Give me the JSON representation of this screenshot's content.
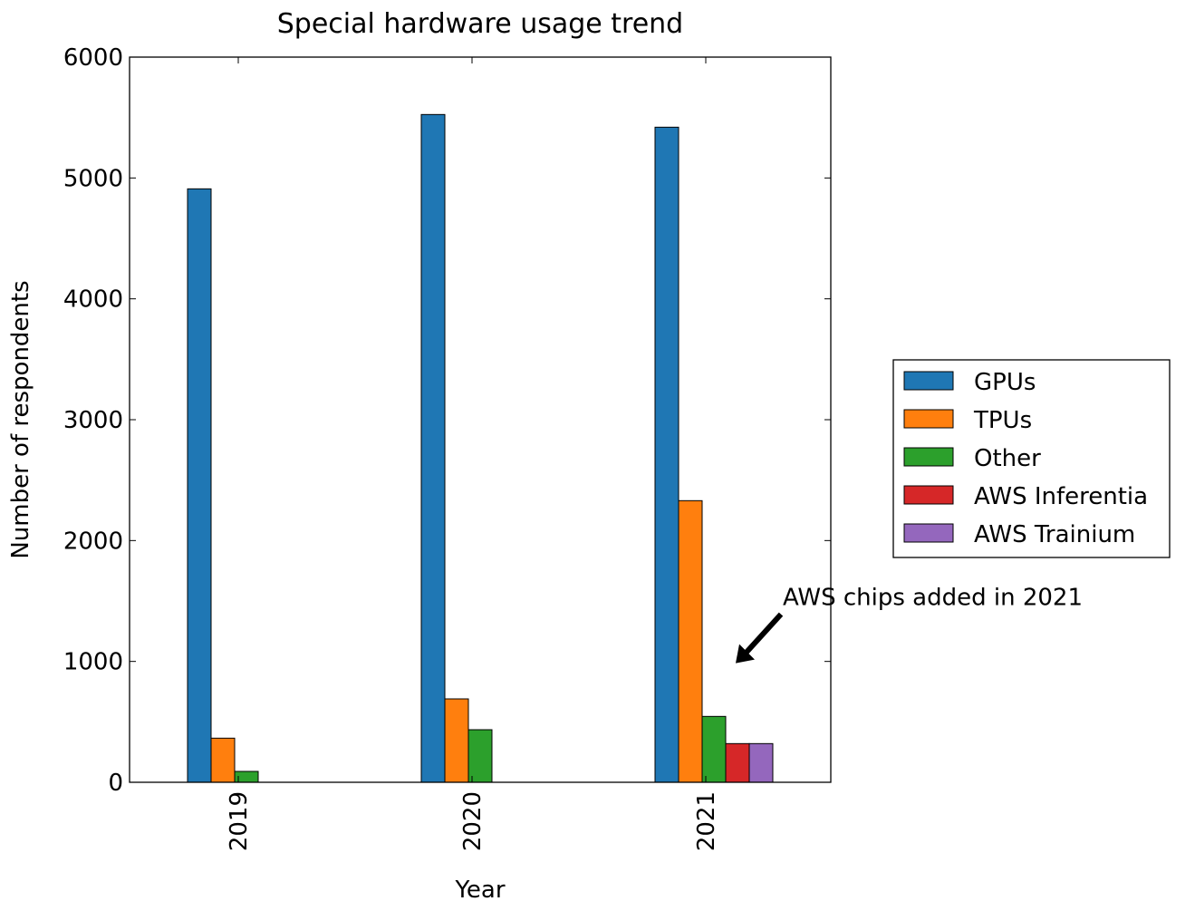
{
  "chart_data": {
    "type": "bar",
    "title": "Special hardware usage trend",
    "xlabel": "Year",
    "ylabel": "Number of respondents",
    "categories": [
      "2019",
      "2020",
      "2021"
    ],
    "ylim": [
      0,
      6000
    ],
    "yticks": [
      "0",
      "1000",
      "2000",
      "3000",
      "4000",
      "5000",
      "6000"
    ],
    "grid": false,
    "legend_position": "right",
    "series": [
      {
        "name": "GPUs",
        "color": "#1f77b4",
        "values": [
          4910,
          5525,
          5420
        ]
      },
      {
        "name": "TPUs",
        "color": "#ff7f0e",
        "values": [
          365,
          690,
          2330
        ]
      },
      {
        "name": "Other",
        "color": "#2ca02c",
        "values": [
          90,
          435,
          545
        ]
      },
      {
        "name": "AWS Inferentia",
        "color": "#d62728",
        "values": [
          0,
          0,
          320
        ]
      },
      {
        "name": "AWS Trainium",
        "color": "#9467bd",
        "values": [
          0,
          0,
          320
        ]
      }
    ],
    "annotation": {
      "text": "AWS chips added in 2021",
      "category": "2021",
      "value": 1000
    }
  }
}
